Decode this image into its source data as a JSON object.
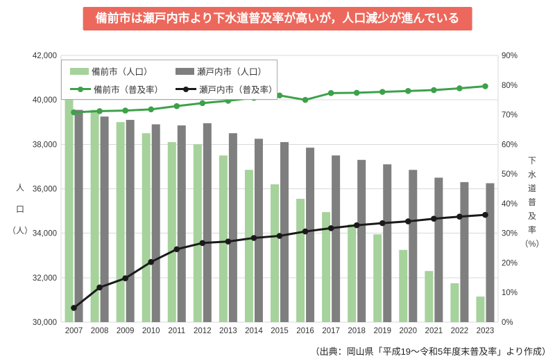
{
  "banner": {
    "text": "備前市は瀬戸内市より下水道普及率が高いが，人口減少が進んでいる",
    "bg_color": "#ed685c",
    "text_color": "#ffffff"
  },
  "axes": {
    "left_title_lines": [
      "人",
      "口",
      "（人）"
    ],
    "right_title_lines": [
      "下",
      "水",
      "道",
      "普",
      "及",
      "率",
      "（%）"
    ]
  },
  "footer": {
    "source_text": "（出典：岡山県「平成19～令和5年度末普及率」より作成）"
  },
  "chart_data": {
    "type": "combo-bar-line",
    "title": "備前市は瀬戸内市より下水道普及率が高いが，人口減少が進んでいる",
    "categories": [
      "2007",
      "2008",
      "2009",
      "2010",
      "2011",
      "2012",
      "2013",
      "2014",
      "2015",
      "2016",
      "2017",
      "2018",
      "2019",
      "2020",
      "2021",
      "2022",
      "2023"
    ],
    "series": [
      {
        "id": "bizen-population",
        "name": "備前市（人口）",
        "kind": "bar",
        "axis": "left",
        "color": "#a6d29c",
        "values": [
          40100,
          39550,
          39000,
          38500,
          38100,
          38000,
          37500,
          36850,
          36200,
          35550,
          34950,
          34400,
          33950,
          33250,
          32300,
          31750,
          31150
        ]
      },
      {
        "id": "setouchi-population",
        "name": "瀬戸内市（人口）",
        "kind": "bar",
        "axis": "left",
        "color": "#7f7f7f",
        "values": [
          39550,
          39250,
          39100,
          38900,
          38850,
          38950,
          38500,
          38250,
          38100,
          37850,
          37500,
          37300,
          37100,
          36850,
          36500,
          36300,
          36250
        ]
      },
      {
        "id": "bizen-rate",
        "name": "備前市（普及率）",
        "kind": "line",
        "axis": "right",
        "color": "#3da14a",
        "values": [
          70.8,
          71.2,
          71.4,
          71.8,
          72.9,
          73.9,
          74.7,
          75.7,
          76.5,
          75.0,
          77.3,
          77.4,
          77.7,
          78.0,
          78.3,
          78.9,
          79.6
        ]
      },
      {
        "id": "setouchi-rate",
        "name": "瀬戸内市（普及率）",
        "kind": "line",
        "axis": "right",
        "color": "#1a1a1a",
        "values": [
          4.8,
          11.7,
          14.8,
          20.3,
          24.6,
          26.7,
          27.2,
          28.4,
          29.1,
          30.6,
          31.7,
          32.7,
          33.4,
          34.0,
          34.9,
          35.6,
          36.2
        ]
      }
    ],
    "left_axis": {
      "label": "人口（人）",
      "min": 30000,
      "max": 42000,
      "tick_step": 2000,
      "ticks": [
        30000,
        32000,
        34000,
        36000,
        38000,
        40000,
        42000
      ]
    },
    "right_axis": {
      "label": "下水道普及率（%）",
      "min": 0,
      "max": 90,
      "tick_step": 10,
      "ticks": [
        0,
        10,
        20,
        30,
        40,
        50,
        60,
        70,
        80,
        90
      ]
    },
    "grid": true,
    "grid_color": "#d9d9d9",
    "legend_position": "top-left-inside",
    "source": "（出典：岡山県「平成19～令和5年度末普及率」より作成）"
  }
}
